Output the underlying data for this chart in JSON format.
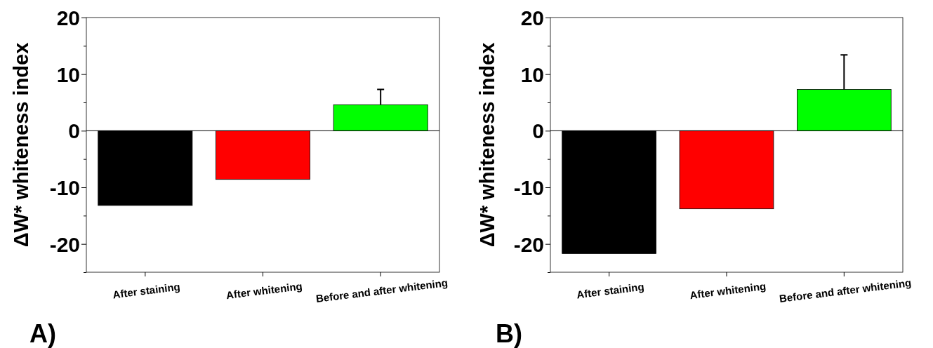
{
  "chart_data": [
    {
      "type": "bar",
      "title": "A)",
      "ylabel": "ΔW* whiteness index",
      "categories": [
        "After staining",
        "After whitening",
        "Before and after whitening"
      ],
      "values": [
        -13.2,
        -8.6,
        4.6
      ],
      "colors": [
        "#000000",
        "#ff0000",
        "#00ff00"
      ],
      "errors": [
        null,
        null,
        [
          4.6,
          7.3
        ]
      ],
      "ylim": [
        -25,
        20
      ],
      "yticks": [
        {
          "value": -25,
          "label": null
        },
        -20,
        {
          "value": -15,
          "label": null
        },
        -10,
        {
          "value": -5,
          "label": null
        },
        0,
        {
          "value": 5,
          "label": null
        },
        10,
        {
          "value": 15,
          "label": null
        },
        20
      ],
      "ref_lines": [
        {
          "axis": "y",
          "value": 0,
          "color": "#000000"
        }
      ]
    },
    {
      "type": "bar",
      "title": "B)",
      "ylabel": "ΔW* whiteness index",
      "categories": [
        "After staining",
        "After whitening",
        "Before and after whitening"
      ],
      "values": [
        -21.7,
        -13.8,
        7.3
      ],
      "colors": [
        "#000000",
        "#ff0000",
        "#00ff00"
      ],
      "errors": [
        null,
        null,
        [
          7.3,
          13.4
        ]
      ],
      "ylim": [
        -25,
        20
      ],
      "yticks": [
        {
          "value": -25,
          "label": null
        },
        -20,
        {
          "value": -15,
          "label": null
        },
        -10,
        {
          "value": -5,
          "label": null
        },
        0,
        {
          "value": 5,
          "label": null
        },
        10,
        {
          "value": 15,
          "label": null
        },
        20
      ],
      "ref_lines": [
        {
          "axis": "y",
          "value": 0,
          "color": "#000000"
        }
      ]
    }
  ]
}
